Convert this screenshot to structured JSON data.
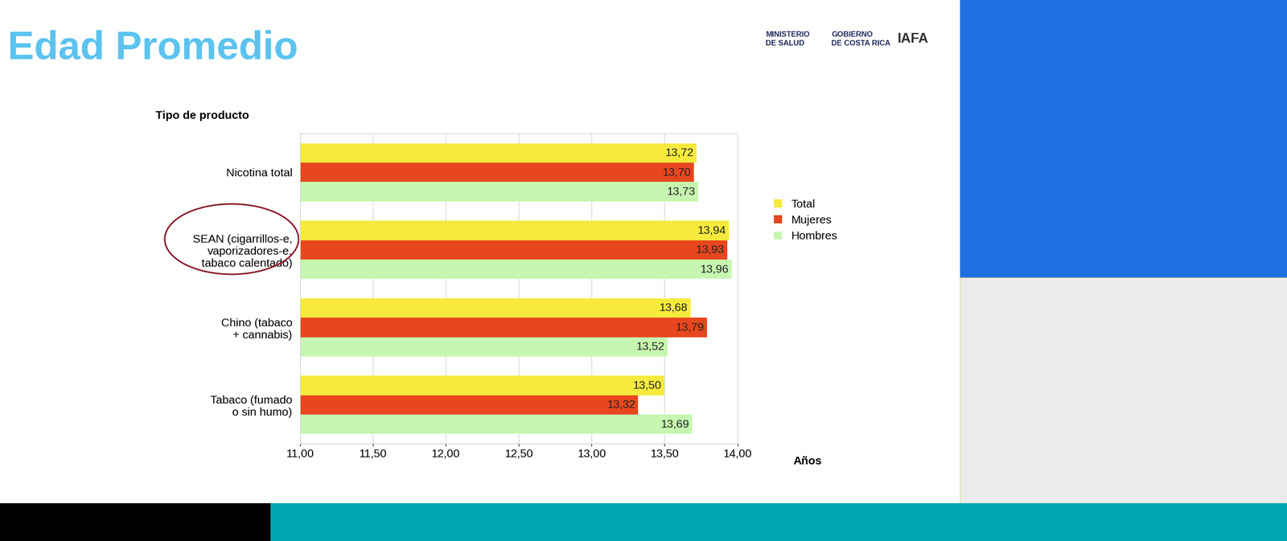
{
  "chart_data": {
    "type": "bar",
    "orientation": "horizontal",
    "title": "Edad Promedio",
    "y_label": "Tipo de producto",
    "x_label": "Años",
    "annotations": [
      "MINISTERIO\nDE SALUD",
      "GOBIERNO\nDE COSTA RICA",
      "IAFA"
    ],
    "categories": [
      "Nicotina total",
      "SEAN (cigarrillos-e,\nvaporizadores-e,\ntabaco calentado)",
      "Chino (tabaco\n+ cannabis)",
      "Tabaco (fumado\no sin humo)"
    ],
    "series": [
      {
        "name": "Total",
        "color": "#f7ea3c",
        "values": [
          13.72,
          13.94,
          13.68,
          13.5
        ],
        "value_labels": [
          "13,72",
          "13,94",
          "13,68",
          "13,50"
        ]
      },
      {
        "name": "Mujeres",
        "color": "#e8461e",
        "values": [
          13.7,
          13.93,
          13.79,
          13.32
        ],
        "value_labels": [
          "13,70",
          "13,93",
          "13,79",
          "13,32"
        ]
      },
      {
        "name": "Hombres",
        "color": "#c6f7b0",
        "values": [
          13.73,
          13.96,
          13.52,
          13.69
        ],
        "value_labels": [
          "13,73",
          "13,96",
          "13,52",
          "13,69"
        ]
      }
    ],
    "xlim": [
      11,
      14
    ],
    "xticks": [
      {
        "value": 11,
        "label": "11,00"
      },
      {
        "value": 11.5,
        "label": "11,50"
      },
      {
        "value": 12,
        "label": "12,00"
      },
      {
        "value": 12.5,
        "label": "12,50"
      },
      {
        "value": 13,
        "label": "13,00"
      },
      {
        "value": 13.5,
        "label": "13,50"
      },
      {
        "value": 14,
        "label": "14,00"
      }
    ],
    "grid": true,
    "legend": "right",
    "data_labels": true
  }
}
